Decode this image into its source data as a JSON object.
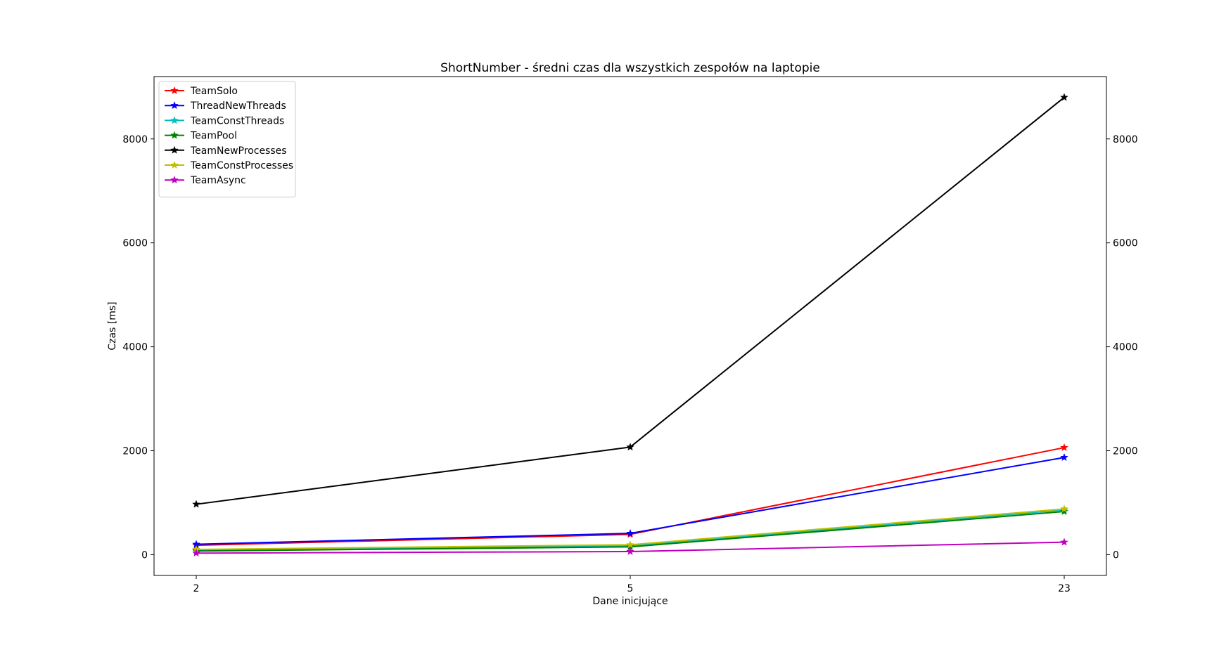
{
  "chart_data": {
    "type": "line",
    "title": "ShortNumber - średni czas dla wszystkich zespołów na laptopie",
    "xlabel": "Dane inicjujące",
    "ylabel": "Czas [ms]",
    "categories": [
      "2",
      "5",
      "23"
    ],
    "ylim": [
      -400,
      9200
    ],
    "yticks": [
      0,
      2000,
      4000,
      6000,
      8000
    ],
    "ytick_labels": [
      "0",
      "2000",
      "4000",
      "6000",
      "8000"
    ],
    "secondary_y_axis": true,
    "grid": false,
    "legend": "top-left",
    "series": [
      {
        "name": "TeamSolo",
        "color": "#ff0000",
        "values": [
          180,
          390,
          2060
        ]
      },
      {
        "name": "ThreadNewThreads",
        "color": "#0000ff",
        "values": [
          200,
          410,
          1870
        ]
      },
      {
        "name": "TeamConstThreads",
        "color": "#00bfbf",
        "values": [
          90,
          170,
          860
        ]
      },
      {
        "name": "TeamPool",
        "color": "#008000",
        "values": [
          70,
          150,
          830
        ]
      },
      {
        "name": "TeamNewProcesses",
        "color": "#000000",
        "values": [
          970,
          2070,
          8800
        ]
      },
      {
        "name": "TeamConstProcesses",
        "color": "#bfbf00",
        "values": [
          100,
          190,
          880
        ]
      },
      {
        "name": "TeamAsync",
        "color": "#bf00bf",
        "values": [
          30,
          60,
          240
        ]
      }
    ]
  }
}
